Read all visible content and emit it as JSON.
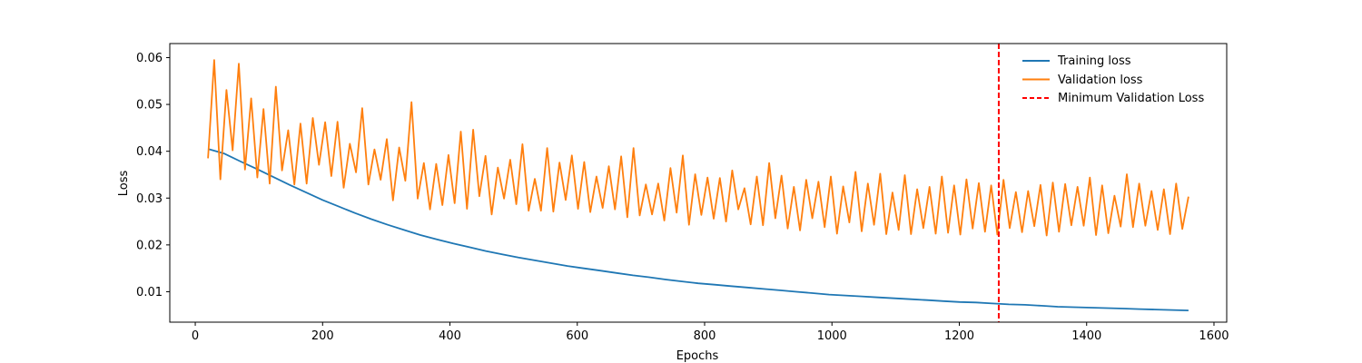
{
  "chart_data": {
    "type": "line",
    "title": "",
    "xlabel": "Epochs",
    "ylabel": "Loss",
    "xlim": [
      -40,
      1620
    ],
    "ylim": [
      0.0035,
      0.063
    ],
    "xticks": [
      0,
      200,
      400,
      600,
      800,
      1000,
      1200,
      1400,
      1600
    ],
    "yticks": [
      0.01,
      0.02,
      0.03,
      0.04,
      0.05,
      0.06
    ],
    "xtick_labels": [
      "0",
      "200",
      "400",
      "600",
      "800",
      "1000",
      "1200",
      "1400",
      "1600"
    ],
    "ytick_labels": [
      "0.01",
      "0.02",
      "0.03",
      "0.04",
      "0.05",
      "0.06"
    ],
    "legend_position": "top-right",
    "series": [
      {
        "name": "Training loss",
        "color": "#1f77b4",
        "x_start": 20,
        "x_end": 1560,
        "values": [
          0.0405,
          0.0395,
          0.0378,
          0.0362,
          0.0345,
          0.0328,
          0.0312,
          0.0296,
          0.0282,
          0.0268,
          0.0255,
          0.0243,
          0.0232,
          0.0221,
          0.0212,
          0.0203,
          0.0195,
          0.0187,
          0.018,
          0.0173,
          0.0167,
          0.0161,
          0.0155,
          0.015,
          0.0145,
          0.014,
          0.0135,
          0.0131,
          0.0126,
          0.0122,
          0.0118,
          0.0115,
          0.0112,
          0.0109,
          0.0106,
          0.0103,
          0.01,
          0.0097,
          0.0094,
          0.0092,
          0.009,
          0.0088,
          0.0086,
          0.0084,
          0.0082,
          0.008,
          0.0078,
          0.0077,
          0.0075,
          0.0073,
          0.0072,
          0.007,
          0.0068,
          0.0067,
          0.0066,
          0.0065,
          0.0064,
          0.0063,
          0.0062,
          0.0061,
          0.006
        ]
      },
      {
        "name": "Validation loss",
        "color": "#ff7f0e",
        "x_start": 20,
        "x_end": 1560,
        "values": [
          0.0385,
          0.0595,
          0.034,
          0.0531,
          0.0402,
          0.0587,
          0.0361,
          0.0513,
          0.0344,
          0.049,
          0.0331,
          0.0538,
          0.0359,
          0.0445,
          0.0329,
          0.0459,
          0.0331,
          0.0471,
          0.0371,
          0.0462,
          0.0347,
          0.0463,
          0.0322,
          0.0416,
          0.0355,
          0.0492,
          0.0329,
          0.0404,
          0.0339,
          0.0426,
          0.0295,
          0.0408,
          0.0337,
          0.0505,
          0.0299,
          0.0375,
          0.0276,
          0.0373,
          0.0285,
          0.0392,
          0.0289,
          0.0442,
          0.0277,
          0.0446,
          0.0304,
          0.039,
          0.0265,
          0.0365,
          0.0299,
          0.0382,
          0.0287,
          0.0415,
          0.0273,
          0.0341,
          0.0273,
          0.0407,
          0.0271,
          0.0376,
          0.0296,
          0.0391,
          0.0277,
          0.0377,
          0.027,
          0.0346,
          0.0279,
          0.0368,
          0.0276,
          0.0389,
          0.0259,
          0.0407,
          0.0263,
          0.0329,
          0.0265,
          0.0331,
          0.0252,
          0.0364,
          0.0269,
          0.0391,
          0.0243,
          0.0351,
          0.0264,
          0.0344,
          0.0256,
          0.0343,
          0.025,
          0.0359,
          0.0276,
          0.0321,
          0.0244,
          0.0346,
          0.0242,
          0.0375,
          0.0257,
          0.0348,
          0.0235,
          0.0324,
          0.0231,
          0.0339,
          0.0257,
          0.0335,
          0.0238,
          0.0346,
          0.0224,
          0.0325,
          0.0248,
          0.0356,
          0.0229,
          0.0331,
          0.0243,
          0.0352,
          0.0223,
          0.0312,
          0.0232,
          0.0349,
          0.0223,
          0.0319,
          0.0236,
          0.0324,
          0.0224,
          0.0346,
          0.0226,
          0.0327,
          0.0222,
          0.034,
          0.0235,
          0.0332,
          0.0228,
          0.0327,
          0.0222,
          0.0339,
          0.0236,
          0.0313,
          0.0227,
          0.0315,
          0.024,
          0.0328,
          0.022,
          0.0333,
          0.0228,
          0.033,
          0.0242,
          0.0324,
          0.0241,
          0.0344,
          0.0221,
          0.0327,
          0.0225,
          0.0305,
          0.0239,
          0.0351,
          0.0238,
          0.0331,
          0.0241,
          0.0315,
          0.0232,
          0.0319,
          0.0223,
          0.0331,
          0.0234,
          0.0303
        ]
      }
    ],
    "min_validation": {
      "name": "Minimum Validation Loss",
      "x": 1262,
      "color": "#ff0000"
    }
  }
}
